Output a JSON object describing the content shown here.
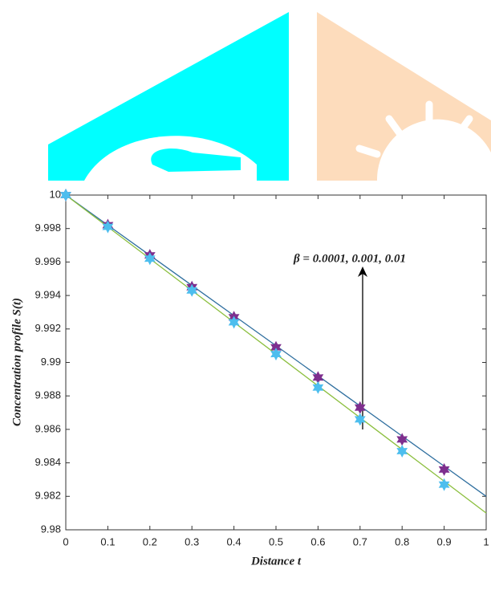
{
  "chart_data": {
    "type": "line",
    "xlabel": "Distance t",
    "ylabel": "Concentration profile S(t)",
    "annotation": "β = 0.0001, 0.001, 0.01",
    "x": [
      0,
      0.1,
      0.2,
      0.3,
      0.4,
      0.5,
      0.6,
      0.7,
      0.8,
      0.9,
      1
    ],
    "series": [
      {
        "color": "#2f6f9f",
        "marker": "none",
        "line": true,
        "values": [
          10,
          9.9982,
          9.9964,
          9.9946,
          9.9928,
          9.991,
          9.9892,
          9.9874,
          9.9856,
          9.9838,
          9.982
        ]
      },
      {
        "color": "#7e2f8e",
        "marker": "hexagram",
        "line": false,
        "values": [
          10,
          9.9982,
          9.9964,
          9.9945,
          9.9927,
          9.9909,
          9.9891,
          9.9873,
          9.9854,
          9.9836,
          null
        ]
      },
      {
        "color": "#8cbf3f",
        "marker": "none",
        "line": true,
        "values": [
          10,
          9.9981,
          9.9962,
          9.9943,
          9.9924,
          9.9905,
          9.9886,
          9.9867,
          9.9848,
          9.9829,
          9.981
        ]
      },
      {
        "color": "#4dbeee",
        "marker": "hexagram",
        "line": false,
        "values": [
          10,
          9.9981,
          9.9962,
          9.9943,
          9.9924,
          9.9905,
          9.9885,
          9.9866,
          9.9847,
          9.9827,
          null
        ]
      }
    ],
    "xlim": [
      0,
      1
    ],
    "xticks": [
      0,
      0.1,
      0.2,
      0.3,
      0.4,
      0.5,
      0.6,
      0.7,
      0.8,
      0.9,
      1
    ],
    "ylim": [
      9.98,
      10
    ],
    "yticks": [
      9.98,
      9.982,
      9.984,
      9.986,
      9.988,
      9.99,
      9.992,
      9.994,
      9.996,
      9.998,
      10
    ],
    "grid": false
  }
}
